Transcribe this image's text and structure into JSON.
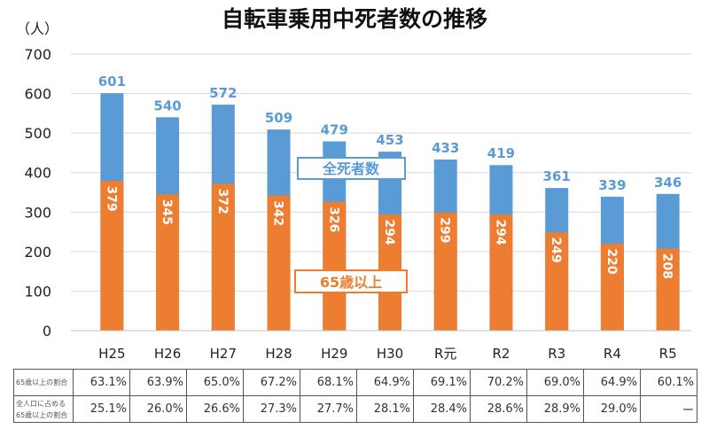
{
  "chart_data": {
    "type": "bar",
    "stacked": "overlay",
    "title": "自転車乗用中死者数の推移",
    "ylabel": "（人）",
    "ylim": [
      0,
      700
    ],
    "yticks": [
      0,
      100,
      200,
      300,
      400,
      500,
      600,
      700
    ],
    "grid": true,
    "categories": [
      "H25",
      "H26",
      "H27",
      "H28",
      "H29",
      "H30",
      "R元",
      "R2",
      "R3",
      "R4",
      "R5"
    ],
    "series": [
      {
        "name": "全死者数",
        "color": "#5B9BD5",
        "values": [
          601,
          540,
          572,
          509,
          479,
          453,
          433,
          419,
          361,
          339,
          346
        ]
      },
      {
        "name": "65歳以上",
        "color": "#ED7D31",
        "values": [
          379,
          345,
          372,
          342,
          326,
          294,
          299,
          294,
          249,
          220,
          208
        ]
      }
    ]
  },
  "table": {
    "rows": [
      {
        "label": "65歳以上の割合",
        "values": [
          "63.1%",
          "63.9%",
          "65.0%",
          "67.2%",
          "68.1%",
          "64.9%",
          "69.1%",
          "70.2%",
          "69.0%",
          "64.9%",
          "60.1%"
        ]
      },
      {
        "label_line1": "全人口に占める",
        "label_line2": "65歳以上の割合",
        "values": [
          "25.1%",
          "26.0%",
          "26.6%",
          "27.3%",
          "27.7%",
          "28.1%",
          "28.4%",
          "28.6%",
          "28.9%",
          "29.0%",
          "ー"
        ]
      }
    ]
  }
}
